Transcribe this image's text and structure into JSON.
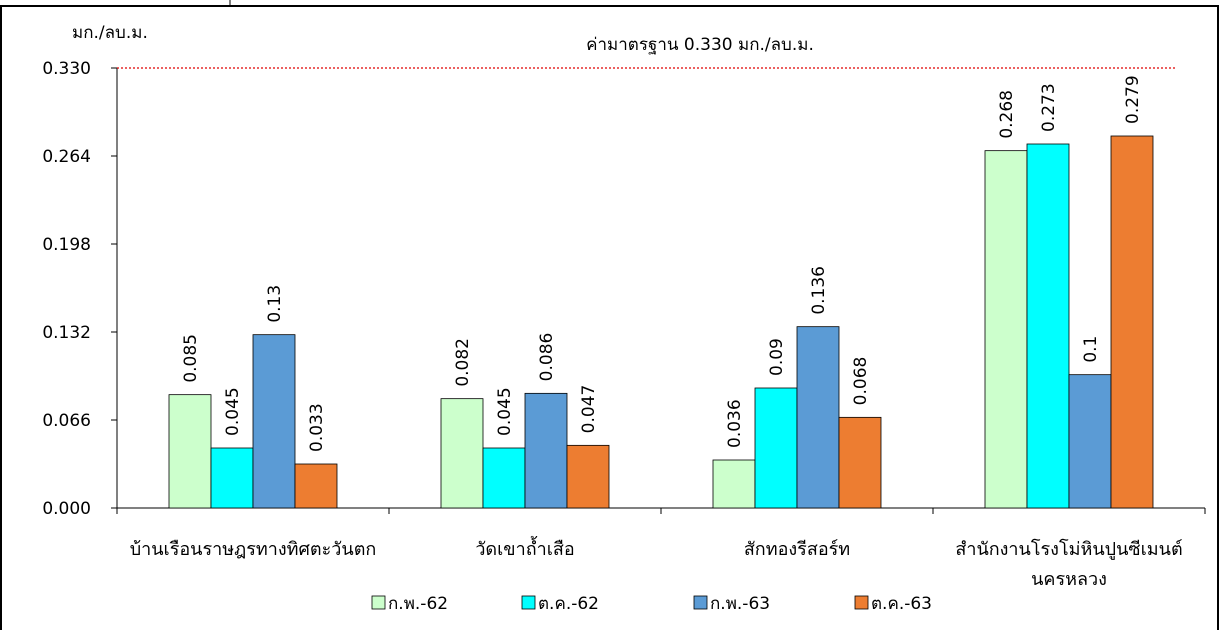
{
  "chart_data": {
    "type": "bar",
    "y_unit_label": "มก./ลบ.ม.",
    "standard_label": "ค่ามาตรฐาน 0.330 มก./ลบ.ม.",
    "standard_value": 0.33,
    "ylim": [
      0,
      0.33
    ],
    "yticks": [
      "0.000",
      "0.066",
      "0.132",
      "0.198",
      "0.264",
      "0.330"
    ],
    "categories": [
      [
        "บ้านเรือนราษฎรทางทิศตะวันตก"
      ],
      [
        "วัดเขาถ้ำเสือ"
      ],
      [
        "สักทองรีสอร์ท"
      ],
      [
        "สำนักงานโรงโม่หินปูนซีเมนต์",
        "นครหลวง"
      ]
    ],
    "series": [
      {
        "name": "ก.พ.-62",
        "color": "#ccffcc",
        "values": [
          0.085,
          0.082,
          0.036,
          0.268
        ],
        "labels": [
          "0.085",
          "0.082",
          "0.036",
          "0.268"
        ]
      },
      {
        "name": "ต.ค.-62",
        "color": "#00ffff",
        "values": [
          0.045,
          0.045,
          0.09,
          0.273
        ],
        "labels": [
          "0.045",
          "0.045",
          "0.09",
          "0.273"
        ]
      },
      {
        "name": "ก.พ.-63",
        "color": "#5b9bd5",
        "values": [
          0.13,
          0.086,
          0.136,
          0.1
        ],
        "labels": [
          "0.13",
          "0.086",
          "0.136",
          "0.1"
        ]
      },
      {
        "name": "ต.ค.-63",
        "color": "#ed7d31",
        "values": [
          0.033,
          0.047,
          0.068,
          0.279
        ],
        "labels": [
          "0.033",
          "0.047",
          "0.068",
          "0.279"
        ]
      }
    ],
    "reference_line_color": "#e00000",
    "grid": false,
    "legend_position": "bottom-center"
  }
}
